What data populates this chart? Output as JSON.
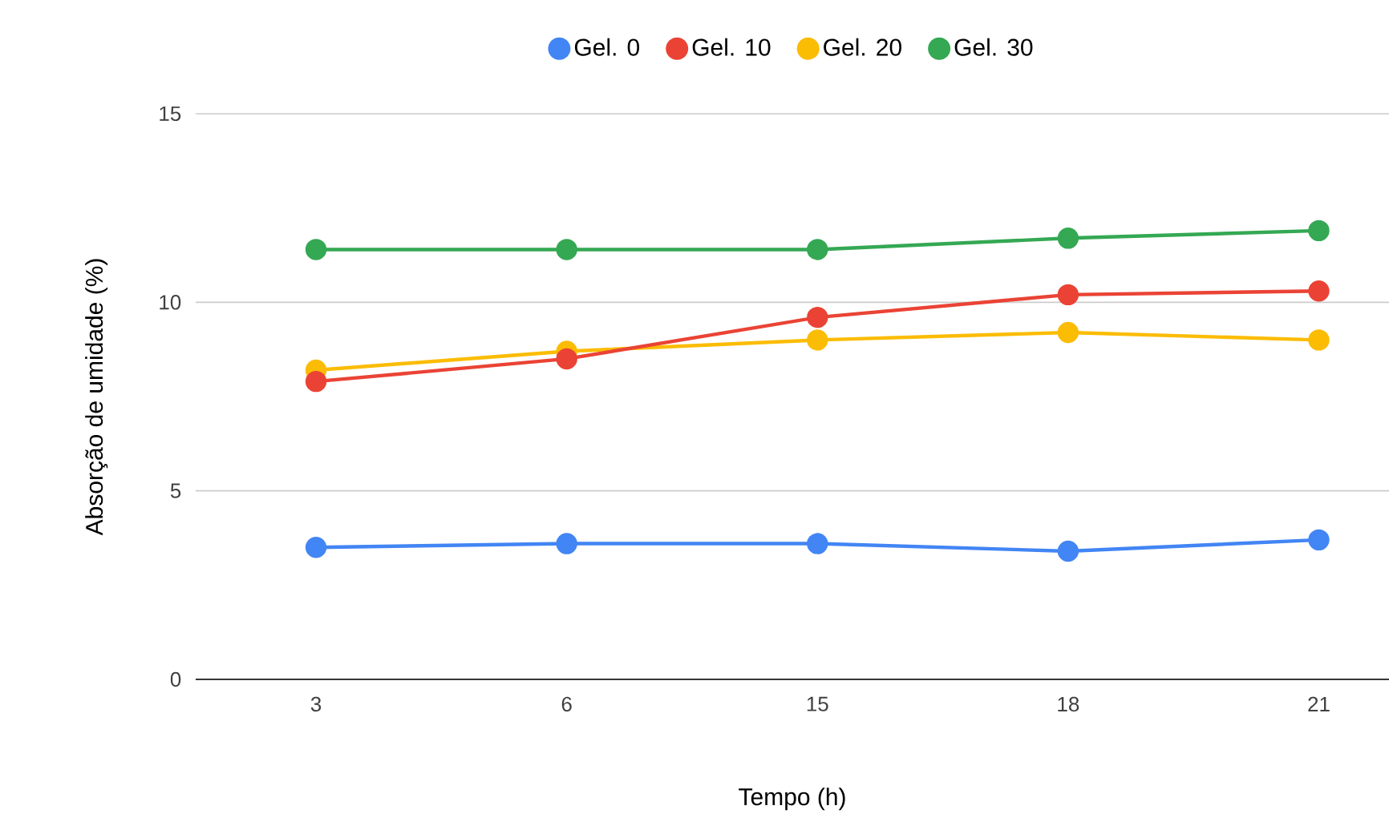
{
  "chart_data": {
    "type": "line",
    "xlabel": "Tempo (h)",
    "ylabel": "Absorção de umidade (%)",
    "categories": [
      "3",
      "6",
      "15",
      "18",
      "21"
    ],
    "series": [
      {
        "name": "Gel. 0",
        "color": "#4285f4",
        "values": [
          3.5,
          3.6,
          3.6,
          3.4,
          3.7
        ]
      },
      {
        "name": "Gel. 10",
        "color": "#ea4335",
        "values": [
          7.9,
          8.5,
          9.6,
          10.2,
          10.3
        ]
      },
      {
        "name": "Gel. 20",
        "color": "#fbbc04",
        "values": [
          8.2,
          8.7,
          9.0,
          9.2,
          9.0
        ]
      },
      {
        "name": "Gel. 30",
        "color": "#34a853",
        "values": [
          11.4,
          11.4,
          11.4,
          11.7,
          11.9
        ]
      }
    ],
    "ylim": [
      0,
      15
    ],
    "yticks": [
      0,
      5,
      10,
      15
    ],
    "grid": "y",
    "legend": "top",
    "marker": "circle",
    "line_style": "solid"
  }
}
